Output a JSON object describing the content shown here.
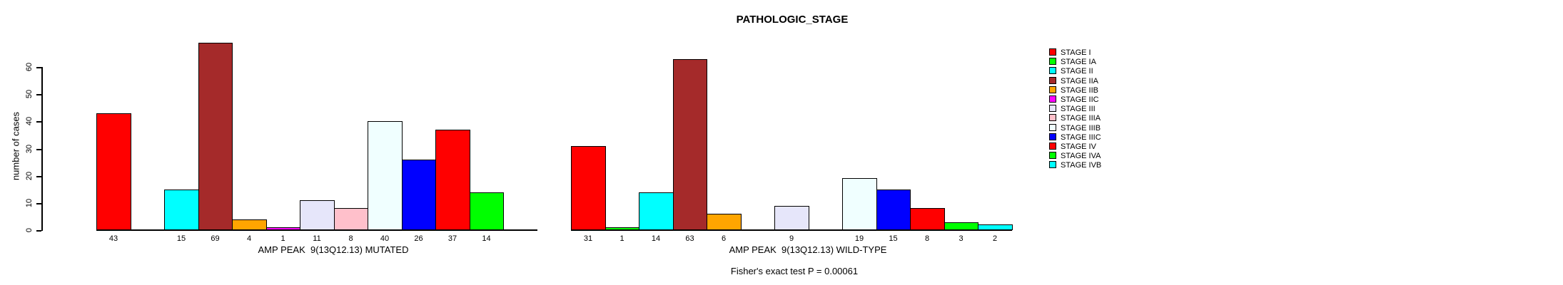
{
  "chart_data": {
    "type": "bar",
    "title": "PATHOLOGIC_STAGE",
    "ylabel": "number of cases",
    "annotation": "Fisher's exact test P = 0.00061",
    "ylim": [
      0,
      69
    ],
    "yticks": [
      0,
      10,
      20,
      30,
      40,
      50,
      60
    ],
    "grid": false,
    "legend_position": "right",
    "bar_border_color": "#000000",
    "categories": [
      "STAGE I",
      "STAGE IA",
      "STAGE II",
      "STAGE IIA",
      "STAGE IIB",
      "STAGE IIC",
      "STAGE III",
      "STAGE IIIA",
      "STAGE IIIB",
      "STAGE IIIC",
      "STAGE IV",
      "STAGE IVA",
      "STAGE IVB"
    ],
    "colors": [
      "#FF0000",
      "#00FF00",
      "#00FFFF",
      "#A52A2A",
      "#FFA500",
      "#FF00FF",
      "#E6E6FA",
      "#FFC0CB",
      "#F0FFFF",
      "#0000FF",
      "#FF0000",
      "#00FF00",
      "#00FFFF"
    ],
    "groups": [
      {
        "key": "mutated",
        "xlabel": "AMP PEAK  9(13Q12.13) MUTATED",
        "values": [
          43,
          0,
          15,
          69,
          4,
          1,
          11,
          8,
          40,
          26,
          37,
          14,
          0
        ]
      },
      {
        "key": "wild-type",
        "xlabel": "AMP PEAK  9(13Q12.13) WILD-TYPE",
        "values": [
          31,
          1,
          14,
          63,
          6,
          0,
          9,
          0,
          19,
          15,
          8,
          3,
          2
        ]
      }
    ]
  }
}
